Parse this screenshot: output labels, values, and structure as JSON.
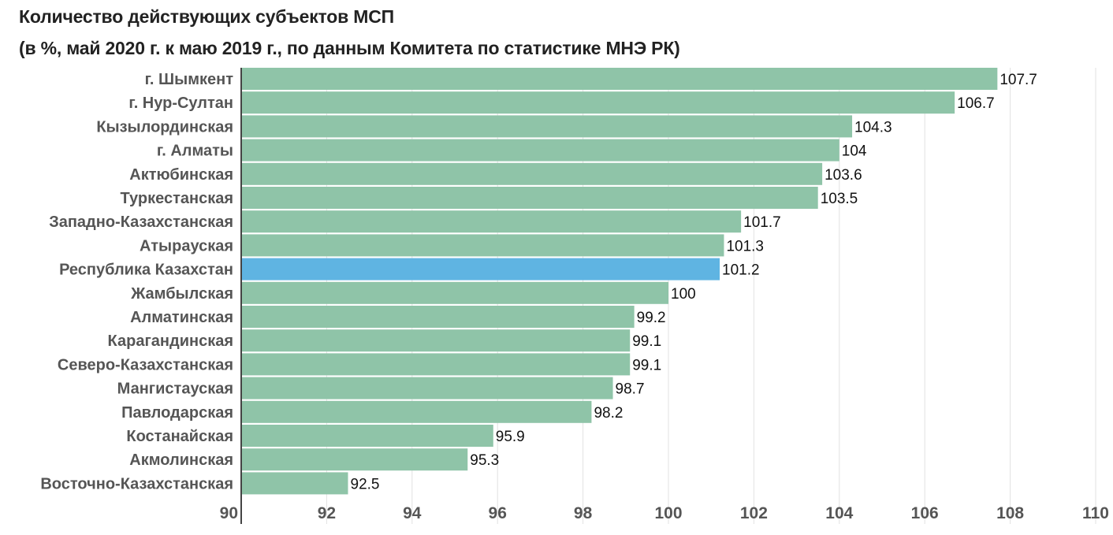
{
  "chart_data": {
    "type": "bar",
    "orientation": "horizontal",
    "title": "Количество действующих субъектов МСП",
    "subtitle": "(в %, май 2020 г. к маю 2019 г., по данным Комитета по статистике МНЭ РК)",
    "categories": [
      "г. Шымкент",
      "г. Нур-Султан",
      "Кызылординская",
      "г. Алматы",
      "Актюбинская",
      "Туркестанская",
      "Западно-Казахстанская",
      "Атырауская",
      "Республика Казахстан",
      "Жамбылская",
      "Алматинская",
      "Карагандинская",
      "Северо-Казахстанская",
      "Мангистауская",
      "Павлодарская",
      "Костанайская",
      "Акмолинская",
      "Восточно-Казахстанская"
    ],
    "values": [
      107.7,
      106.7,
      104.3,
      104,
      103.6,
      103.5,
      101.7,
      101.3,
      101.2,
      100,
      99.2,
      99.1,
      99.1,
      98.7,
      98.2,
      95.9,
      95.3,
      92.5
    ],
    "value_labels": [
      "107.7",
      "106.7",
      "104.3",
      "104",
      "103.6",
      "103.5",
      "101.7",
      "101.3",
      "101.2",
      "100",
      "99.2",
      "99.1",
      "99.1",
      "98.7",
      "98.2",
      "95.9",
      "95.3",
      "92.5"
    ],
    "highlight_category": "Республика Казахстан",
    "xlim": [
      90,
      110
    ],
    "x_ticks": [
      90,
      92,
      94,
      96,
      98,
      100,
      102,
      104,
      106,
      108,
      110
    ],
    "xlabel": "",
    "ylabel": "",
    "grid": "vertical",
    "colors": {
      "bar": "#8fc4a8",
      "highlight": "#5fb4e2",
      "grid": "#e2e2e2",
      "axis": "#444444"
    }
  }
}
